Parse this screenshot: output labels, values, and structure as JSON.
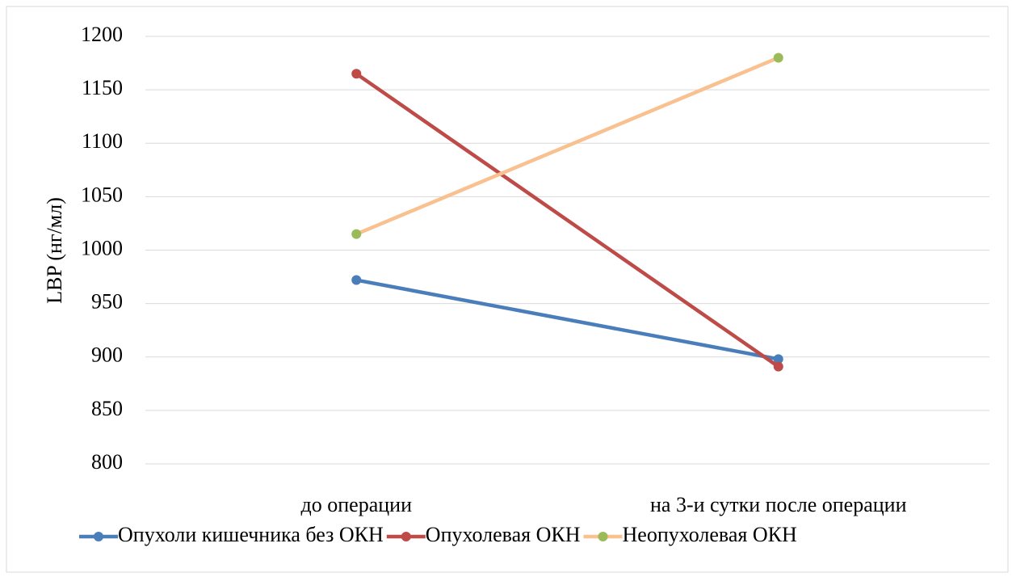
{
  "chart_data": {
    "type": "line",
    "y_label": "LBP (нг/мл)",
    "categories": [
      "до операции",
      "на 3-и сутки после операции"
    ],
    "series": [
      {
        "name": "Опухоли кишечника без ОКН",
        "color": "#4a7ebb",
        "values": [
          972,
          898
        ]
      },
      {
        "name": "Опухолевая ОКН",
        "color": "#be4b48",
        "values": [
          1165,
          891
        ]
      },
      {
        "name": "Неопухолевая ОКН",
        "color": "#f9c090",
        "values": [
          1015,
          1180
        ]
      }
    ],
    "marker_colors": [
      "#4a7ebb",
      "#be4b48",
      "#9bbb59"
    ],
    "ylim": [
      800,
      1200
    ],
    "yticks": [
      800,
      850,
      900,
      950,
      1000,
      1050,
      1100,
      1150,
      1200
    ],
    "grid": true,
    "legend": "bottom"
  }
}
